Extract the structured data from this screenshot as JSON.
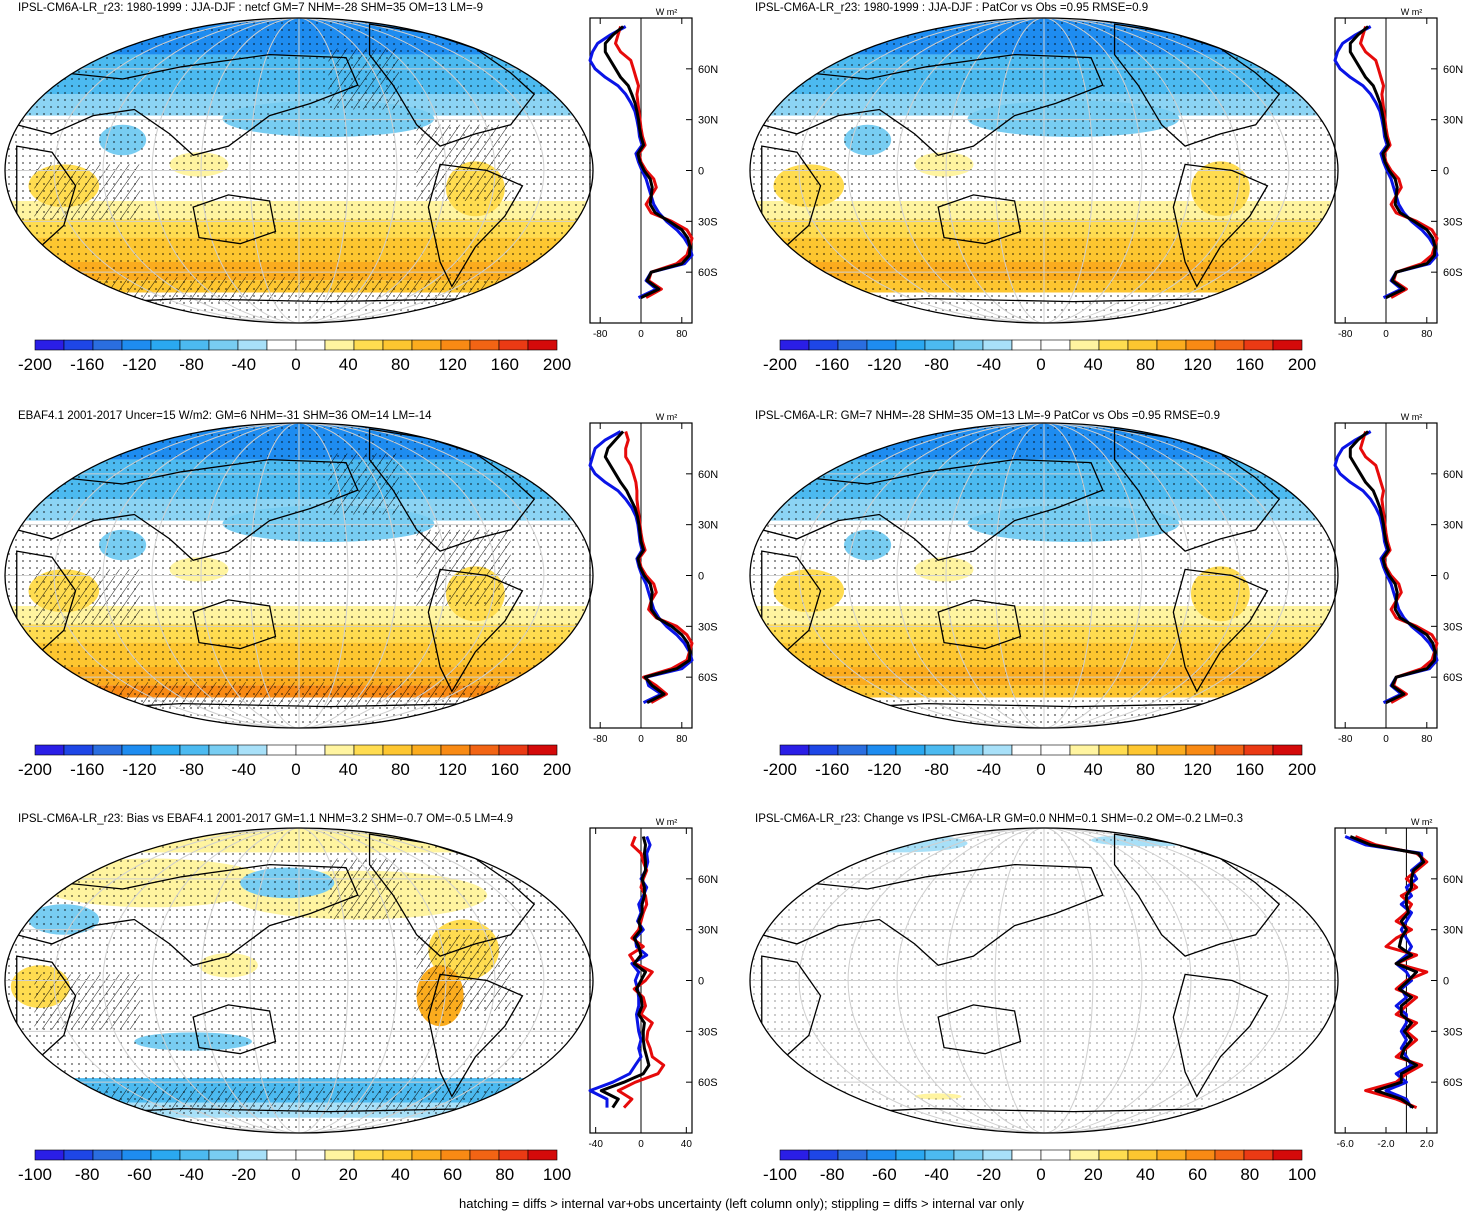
{
  "footer": "hatching = diffs > internal var+obs uncertainty (left column only); stippling = diffs > internal var only",
  "colors": {
    "neg": [
      "#2a1ee6",
      "#1e46e6",
      "#2a6ee0",
      "#1e8cf0",
      "#2aa8f0",
      "#4cbaf0",
      "#78cdf2",
      "#a8e0f8"
    ],
    "pos": [
      "#fff4a0",
      "#ffdc50",
      "#fdc630",
      "#fbac1e",
      "#f88a14",
      "#f26414",
      "#ea3a14",
      "#d40a0a"
    ],
    "obs": "#0a14e6",
    "model": "#e60a0a",
    "mean": "#000000"
  },
  "panels": [
    {
      "title": "IPSL-CM6A-LR_r23: 1980-1999 : JJA-DJF : netcf GM=7 NHM=-28 SHM=35 OM=13 LM=-9",
      "cbar_labels": [
        "-200",
        "-160",
        "-120",
        "-80",
        "-40",
        "0",
        "40",
        "80",
        "120",
        "160",
        "200"
      ],
      "zonal": {
        "unit": "W m²",
        "xlim": [
          -100,
          100
        ],
        "xticks": [
          "-80",
          "0",
          "80"
        ],
        "lat_ticks": [
          "60N",
          "30N",
          "0",
          "30S",
          "60S"
        ],
        "hatch": true
      },
      "chart_data": {
        "type": "line",
        "lat": [
          85,
          80,
          75,
          70,
          65,
          60,
          55,
          50,
          45,
          40,
          35,
          30,
          25,
          20,
          15,
          10,
          5,
          0,
          -5,
          -10,
          -15,
          -20,
          -25,
          -30,
          -35,
          -40,
          -45,
          -50,
          -55,
          -60,
          -65,
          -70,
          -75
        ],
        "series": [
          {
            "values": [
              -30,
              -60,
              -85,
              -95,
              -100,
              -90,
              -70,
              -45,
              -30,
              -20,
              -12,
              -8,
              -5,
              -3,
              2,
              -10,
              -5,
              2,
              10,
              15,
              20,
              25,
              35,
              50,
              70,
              85,
              95,
              100,
              85,
              20,
              10,
              30,
              -5
            ]
          },
          {
            "values": [
              -40,
              -45,
              -50,
              -40,
              -20,
              -15,
              -10,
              -5,
              -8,
              -6,
              -4,
              -2,
              0,
              3,
              8,
              -4,
              0,
              10,
              25,
              30,
              20,
              10,
              20,
              60,
              90,
              100,
              95,
              90,
              70,
              20,
              15,
              40,
              10
            ]
          },
          {
            "values": [
              -35,
              -55,
              -70,
              -70,
              -60,
              -50,
              -40,
              -25,
              -18,
              -12,
              -8,
              -5,
              -3,
              0,
              5,
              -6,
              -2,
              6,
              18,
              22,
              20,
              18,
              28,
              55,
              80,
              92,
              96,
              95,
              80,
              20,
              12,
              35,
              0
            ]
          }
        ]
      }
    },
    {
      "title": "IPSL-CM6A-LR_r23: 1980-1999 : JJA-DJF : PatCor vs Obs =0.95 RMSE=0.9",
      "cbar_labels": [
        "-200",
        "-160",
        "-120",
        "-80",
        "-40",
        "0",
        "40",
        "80",
        "120",
        "160",
        "200"
      ],
      "zonal": {
        "unit": "W m²",
        "xlim": [
          -100,
          100
        ],
        "xticks": [
          "-80",
          "0",
          "80"
        ],
        "lat_ticks": [
          "60N",
          "30N",
          "0",
          "30S",
          "60S"
        ],
        "hatch": false
      },
      "chart_data": {
        "type": "line",
        "lat": [
          85,
          80,
          75,
          70,
          65,
          60,
          55,
          50,
          45,
          40,
          35,
          30,
          25,
          20,
          15,
          10,
          5,
          0,
          -5,
          -10,
          -15,
          -20,
          -25,
          -30,
          -35,
          -40,
          -45,
          -50,
          -55,
          -60,
          -65,
          -70,
          -75
        ],
        "series": [
          {
            "values": [
              -30,
              -60,
              -85,
              -95,
              -100,
              -90,
              -70,
              -45,
              -30,
              -20,
              -12,
              -8,
              -5,
              -3,
              2,
              -10,
              -5,
              2,
              10,
              15,
              20,
              25,
              35,
              50,
              70,
              85,
              95,
              100,
              85,
              20,
              10,
              30,
              -5
            ]
          },
          {
            "values": [
              -40,
              -45,
              -50,
              -40,
              -20,
              -15,
              -10,
              -5,
              -8,
              -6,
              -4,
              -2,
              0,
              3,
              8,
              -4,
              0,
              10,
              25,
              30,
              20,
              10,
              20,
              60,
              90,
              100,
              95,
              90,
              70,
              20,
              15,
              40,
              10
            ]
          },
          {
            "values": [
              -35,
              -55,
              -70,
              -70,
              -60,
              -50,
              -40,
              -25,
              -18,
              -12,
              -8,
              -5,
              -3,
              0,
              5,
              -6,
              -2,
              6,
              18,
              22,
              20,
              18,
              28,
              55,
              80,
              92,
              96,
              95,
              80,
              20,
              12,
              35,
              0
            ]
          }
        ]
      }
    },
    {
      "title": "EBAF4.1 2001-2017 Uncer=15 W/m2: GM=6 NHM=-31 SHM=36 OM=14 LM=-14",
      "cbar_labels": [
        "-200",
        "-160",
        "-120",
        "-80",
        "-40",
        "0",
        "40",
        "80",
        "120",
        "160",
        "200"
      ],
      "zonal": {
        "unit": "W m²",
        "xlim": [
          -100,
          100
        ],
        "xticks": [
          "-80",
          "0",
          "80"
        ],
        "lat_ticks": [
          "60N",
          "30N",
          "0",
          "30S",
          "60S"
        ],
        "hatch": true
      },
      "chart_data": {
        "type": "line",
        "lat": [
          85,
          80,
          75,
          70,
          65,
          60,
          55,
          50,
          45,
          40,
          35,
          30,
          25,
          20,
          15,
          10,
          5,
          0,
          -5,
          -10,
          -15,
          -20,
          -25,
          -30,
          -35,
          -40,
          -45,
          -50,
          -55,
          -60,
          -65,
          -70,
          -75
        ],
        "series": [
          {
            "values": [
              -40,
              -70,
              -90,
              -95,
              -100,
              -90,
              -70,
              -45,
              -30,
              -18,
              -10,
              -6,
              -4,
              -2,
              2,
              -8,
              -4,
              2,
              10,
              15,
              20,
              25,
              35,
              50,
              70,
              85,
              95,
              100,
              80,
              10,
              15,
              40,
              5
            ]
          },
          {
            "values": [
              -30,
              -25,
              -30,
              -30,
              -20,
              -15,
              -10,
              -8,
              -8,
              -6,
              -4,
              -2,
              0,
              3,
              8,
              -4,
              0,
              10,
              25,
              30,
              20,
              15,
              30,
              70,
              90,
              100,
              95,
              90,
              60,
              5,
              30,
              50,
              20
            ]
          },
          {
            "values": [
              -35,
              -50,
              -65,
              -70,
              -60,
              -50,
              -40,
              -28,
              -20,
              -12,
              -7,
              -4,
              -2,
              0,
              5,
              -6,
              -2,
              6,
              18,
              22,
              20,
              20,
              32,
              60,
              80,
              92,
              96,
              95,
              70,
              8,
              22,
              45,
              12
            ]
          }
        ]
      }
    },
    {
      "title": "IPSL-CM6A-LR: GM=7 NHM=-28 SHM=35 OM=13 LM=-9 PatCor vs Obs =0.95 RMSE=0.9",
      "cbar_labels": [
        "-200",
        "-160",
        "-120",
        "-80",
        "-40",
        "0",
        "40",
        "80",
        "120",
        "160",
        "200"
      ],
      "zonal": {
        "unit": "W m²",
        "xlim": [
          -100,
          100
        ],
        "xticks": [
          "-80",
          "0",
          "80"
        ],
        "lat_ticks": [
          "60N",
          "30N",
          "0",
          "30S",
          "60S"
        ],
        "hatch": false
      },
      "chart_data": {
        "type": "line",
        "lat": [
          85,
          80,
          75,
          70,
          65,
          60,
          55,
          50,
          45,
          40,
          35,
          30,
          25,
          20,
          15,
          10,
          5,
          0,
          -5,
          -10,
          -15,
          -20,
          -25,
          -30,
          -35,
          -40,
          -45,
          -50,
          -55,
          -60,
          -65,
          -70,
          -75
        ],
        "series": [
          {
            "values": [
              -30,
              -60,
              -85,
              -95,
              -100,
              -90,
              -70,
              -45,
              -30,
              -20,
              -12,
              -8,
              -5,
              -3,
              2,
              -10,
              -5,
              2,
              10,
              15,
              20,
              25,
              35,
              50,
              70,
              85,
              95,
              100,
              85,
              20,
              10,
              30,
              -5
            ]
          },
          {
            "values": [
              -40,
              -45,
              -50,
              -40,
              -20,
              -15,
              -10,
              -5,
              -8,
              -6,
              -4,
              -2,
              0,
              3,
              8,
              -4,
              0,
              10,
              25,
              30,
              20,
              10,
              20,
              60,
              90,
              100,
              95,
              90,
              70,
              20,
              15,
              40,
              10
            ]
          },
          {
            "values": [
              -35,
              -55,
              -70,
              -70,
              -60,
              -50,
              -40,
              -25,
              -18,
              -12,
              -8,
              -5,
              -3,
              0,
              5,
              -6,
              -2,
              6,
              18,
              22,
              20,
              18,
              28,
              55,
              80,
              92,
              96,
              95,
              80,
              20,
              12,
              35,
              0
            ]
          }
        ]
      }
    },
    {
      "title": "IPSL-CM6A-LR_r23: Bias vs EBAF4.1 2001-2017 GM=1.1 NHM=3.2 SHM=-0.7 OM=-0.5 LM=4.9",
      "cbar_labels": [
        "-100",
        "-80",
        "-60",
        "-40",
        "-20",
        "0",
        "20",
        "40",
        "60",
        "80",
        "100"
      ],
      "zonal": {
        "unit": "W m²",
        "xlim": [
          -45,
          45
        ],
        "xticks": [
          "-40",
          "0",
          "40"
        ],
        "lat_ticks": [
          "60N",
          "30N",
          "0",
          "30S",
          "60S"
        ],
        "hatch": true
      },
      "chart_data": {
        "type": "line",
        "lat": [
          85,
          80,
          75,
          70,
          65,
          60,
          55,
          50,
          45,
          40,
          35,
          30,
          25,
          20,
          15,
          10,
          5,
          0,
          -5,
          -10,
          -15,
          -20,
          -25,
          -30,
          -35,
          -40,
          -45,
          -50,
          -55,
          -60,
          -65,
          -70,
          -75
        ],
        "series": [
          {
            "values": [
              5,
              8,
              5,
              6,
              4,
              0,
              5,
              2,
              -2,
              0,
              -3,
              2,
              -5,
              -4,
              5,
              -8,
              -2,
              -5,
              -3,
              -2,
              -2,
              -4,
              -3,
              -2,
              0,
              -2,
              0,
              -5,
              -10,
              -25,
              -45,
              -30,
              -30
            ]
          },
          {
            "values": [
              -5,
              -8,
              0,
              2,
              5,
              2,
              0,
              4,
              5,
              2,
              0,
              -2,
              -8,
              2,
              -10,
              -5,
              10,
              4,
              -6,
              2,
              4,
              0,
              10,
              6,
              5,
              8,
              10,
              20,
              15,
              -5,
              -20,
              -8,
              -15
            ]
          },
          {
            "values": [
              2,
              4,
              3,
              4,
              4,
              1,
              3,
              3,
              1,
              1,
              -2,
              0,
              -6,
              -2,
              0,
              -6,
              4,
              0,
              -4,
              0,
              1,
              -2,
              3,
              2,
              2,
              3,
              5,
              7,
              2,
              -15,
              -35,
              -20,
              -25
            ]
          }
        ]
      }
    },
    {
      "title": "IPSL-CM6A-LR_r23: Change vs IPSL-CM6A-LR GM=0.0 NHM=0.1 SHM=-0.2 OM=-0.2 LM=0.3",
      "cbar_labels": [
        "-100",
        "-80",
        "-60",
        "-40",
        "-20",
        "0",
        "20",
        "40",
        "60",
        "80",
        "100"
      ],
      "zonal": {
        "unit": "W m²",
        "xlim": [
          -7,
          3
        ],
        "xticks": [
          "-6.0",
          "-2.0",
          "2.0"
        ],
        "lat_ticks": [
          "60N",
          "30N",
          "0",
          "30S",
          "60S"
        ],
        "hatch": false
      },
      "chart_data": {
        "type": "line",
        "lat": [
          85,
          80,
          75,
          70,
          65,
          60,
          55,
          50,
          45,
          40,
          35,
          30,
          25,
          20,
          15,
          10,
          5,
          0,
          -5,
          -10,
          -15,
          -20,
          -25,
          -30,
          -35,
          -40,
          -45,
          -50,
          -55,
          -60,
          -65,
          -70,
          -75
        ],
        "series": [
          {
            "values": [
              -6,
              -4,
              1.5,
              1.5,
              0.5,
              1,
              0,
              0.5,
              -0.5,
              0.5,
              0,
              -0.5,
              0,
              0.5,
              0,
              -1,
              0,
              0.5,
              -0.5,
              0,
              -1,
              0,
              0,
              -0.5,
              0,
              -0.5,
              0,
              0.5,
              -1,
              0,
              -2,
              0,
              0.5
            ]
          },
          {
            "values": [
              -5,
              -3,
              1,
              2,
              1,
              0,
              1,
              -0.5,
              0.5,
              0,
              -1,
              0.5,
              -1,
              -2,
              1,
              -1,
              2,
              0,
              -1,
              1,
              0,
              -1,
              1,
              0,
              1,
              0,
              -1,
              1.5,
              0,
              -1,
              -4,
              -1,
              1
            ]
          },
          {
            "values": [
              -5.5,
              -3.5,
              1.2,
              1.7,
              0.7,
              0.5,
              0.5,
              0,
              0,
              0.2,
              -0.5,
              0,
              -0.5,
              -0.7,
              0.5,
              -1,
              1,
              0.2,
              -0.7,
              0.5,
              -0.5,
              -0.5,
              0.5,
              -0.2,
              0.5,
              -0.2,
              -0.5,
              1,
              -0.5,
              -0.5,
              -3,
              -0.5,
              0.7
            ]
          }
        ]
      }
    }
  ]
}
